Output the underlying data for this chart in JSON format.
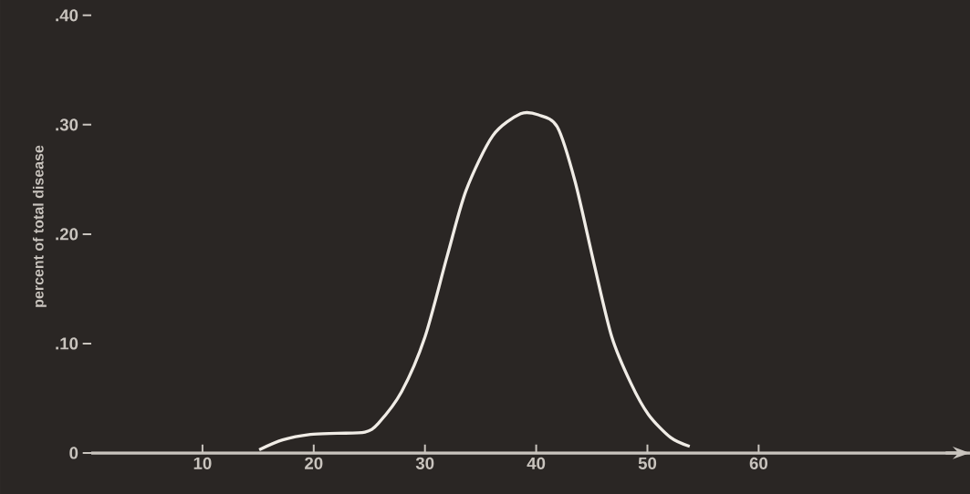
{
  "chart_data": {
    "type": "line",
    "ylabel": "percent of total disease",
    "x": [
      15.1,
      17.2,
      19.7,
      22.1,
      24.6,
      25.8,
      27.9,
      30,
      32,
      33.7,
      36.1,
      38.6,
      40.2,
      41.9,
      43.5,
      45.2,
      46.8,
      48.5,
      50.1,
      52.1,
      53.8
    ],
    "values": [
      0.003,
      0.012,
      0.017,
      0.018,
      0.019,
      0.027,
      0.056,
      0.106,
      0.18,
      0.24,
      0.29,
      0.31,
      0.309,
      0.298,
      0.248,
      0.173,
      0.106,
      0.064,
      0.035,
      0.014,
      0.006
    ],
    "color": "#f0ece6",
    "xlim": [
      0,
      79
    ],
    "ylim": [
      0,
      0.414
    ],
    "xticks": [
      10,
      20,
      30,
      40,
      50,
      60
    ],
    "yticks": [
      0,
      {
        "value": 0.1,
        "label": ".10"
      },
      {
        "value": 0.2,
        "label": ".20"
      },
      {
        "value": 0.3,
        "label": ".30"
      },
      {
        "value": 0.4,
        "label": ".40"
      }
    ]
  }
}
